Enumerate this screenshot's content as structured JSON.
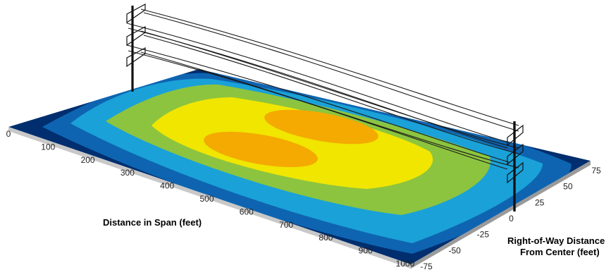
{
  "chart_data": {
    "type": "surface-contour",
    "x_axis": {
      "label": "Distance in Span (feet)",
      "ticks": [
        0,
        100,
        200,
        300,
        400,
        500,
        600,
        700,
        800,
        900,
        1000
      ]
    },
    "y_axis": {
      "label_line1": "Right-of-Way Distance",
      "label_line2": "From Center (feet)",
      "ticks": [
        -75,
        -50,
        -25,
        0,
        25,
        50,
        75
      ]
    },
    "contour_colors": [
      "#002e6e",
      "#0e64b0",
      "#1aa1d8",
      "#8cc43f",
      "#f0e600",
      "#f4aa00"
    ],
    "structures": [
      "transmission-pole-left",
      "transmission-pole-right",
      "conductor-lines"
    ]
  }
}
